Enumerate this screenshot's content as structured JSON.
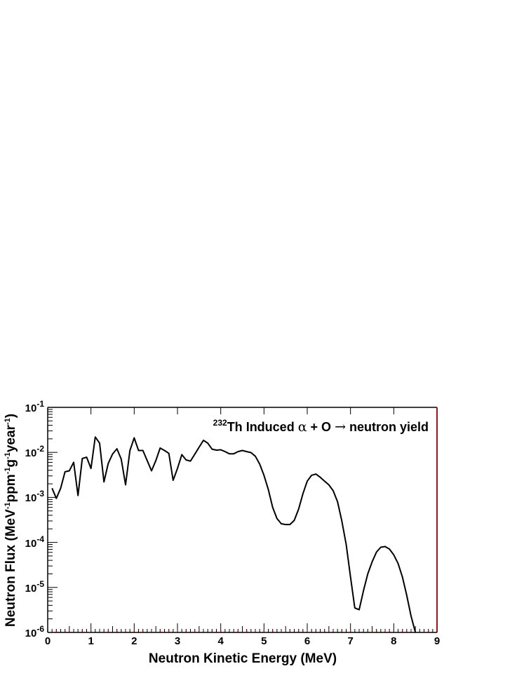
{
  "chart_data": {
    "type": "line",
    "title": "",
    "annotation": {
      "superscript": "232",
      "element": "Th",
      "text_before": " Induced ",
      "alpha": "α",
      "text_mid": " + O ",
      "arrow": "→",
      "text_after": " neutron yield"
    },
    "xlabel": "Neutron Kinetic Energy (MeV)",
    "ylabel": {
      "p1": "Neutron Flux (MeV",
      "s1": "-1",
      "p2": "ppm",
      "s2": "-1",
      "p3": "g",
      "s3": "-1",
      "p4": "year",
      "s4": "-1",
      "p5": ")"
    },
    "xlim": [
      0,
      9
    ],
    "ylim": [
      1e-06,
      0.1
    ],
    "yscale": "log",
    "x_ticks": [
      "0",
      "1",
      "2",
      "3",
      "4",
      "5",
      "6",
      "7",
      "8",
      "9"
    ],
    "y_ticks": [
      {
        "base": "10",
        "exp": "-6"
      },
      {
        "base": "10",
        "exp": "-5"
      },
      {
        "base": "10",
        "exp": "-4"
      },
      {
        "base": "10",
        "exp": "-3"
      },
      {
        "base": "10",
        "exp": "-2"
      },
      {
        "base": "10",
        "exp": "-1"
      }
    ],
    "grid": false,
    "series": [
      {
        "color": "#000000",
        "x": [
          0.1,
          0.2,
          0.3,
          0.4,
          0.5,
          0.6,
          0.7,
          0.8,
          0.9,
          1.0,
          1.1,
          1.2,
          1.3,
          1.4,
          1.5,
          1.6,
          1.7,
          1.8,
          1.9,
          2.0,
          2.1,
          2.2,
          2.3,
          2.4,
          2.5,
          2.6,
          2.7,
          2.8,
          2.9,
          3.0,
          3.1,
          3.2,
          3.3,
          3.4,
          3.5,
          3.6,
          3.7,
          3.8,
          3.9,
          4.0,
          4.1,
          4.2,
          4.3,
          4.4,
          4.5,
          4.6,
          4.7,
          4.8,
          4.9,
          5.0,
          5.1,
          5.2,
          5.3,
          5.4,
          5.5,
          5.6,
          5.7,
          5.8,
          5.9,
          6.0,
          6.1,
          6.2,
          6.3,
          6.4,
          6.5,
          6.6,
          6.7,
          6.8,
          6.9,
          7.0,
          7.1,
          7.2,
          7.3,
          7.4,
          7.5,
          7.6,
          7.7,
          7.8,
          7.9,
          8.0,
          8.1,
          8.2,
          8.3,
          8.4,
          8.5
        ],
        "y": [
          0.0016,
          0.00095,
          0.0016,
          0.0037,
          0.0039,
          0.006,
          0.0011,
          0.0073,
          0.0078,
          0.0044,
          0.022,
          0.016,
          0.0022,
          0.0057,
          0.0092,
          0.012,
          0.0071,
          0.0019,
          0.011,
          0.021,
          0.011,
          0.011,
          0.0066,
          0.0039,
          0.0066,
          0.0125,
          0.011,
          0.0095,
          0.0024,
          0.0044,
          0.0089,
          0.0068,
          0.0064,
          0.0091,
          0.013,
          0.0185,
          0.016,
          0.0118,
          0.0112,
          0.0114,
          0.0104,
          0.0093,
          0.0093,
          0.0104,
          0.011,
          0.0104,
          0.0099,
          0.0082,
          0.0055,
          0.0031,
          0.0015,
          0.0006,
          0.00034,
          0.00026,
          0.00025,
          0.00025,
          0.00031,
          0.00055,
          0.0012,
          0.0023,
          0.0031,
          0.0033,
          0.0028,
          0.0023,
          0.0019,
          0.0014,
          0.0008,
          0.0003,
          9e-05,
          1.7e-05,
          3.5e-06,
          3.2e-06,
          8.5e-06,
          2e-05,
          3.7e-05,
          6.1e-05,
          7.8e-05,
          8.1e-05,
          7.1e-05,
          5.3e-05,
          3.4e-05,
          1.7e-05,
          6.7e-06,
          2.3e-06,
          7.5e-07
        ]
      }
    ]
  }
}
